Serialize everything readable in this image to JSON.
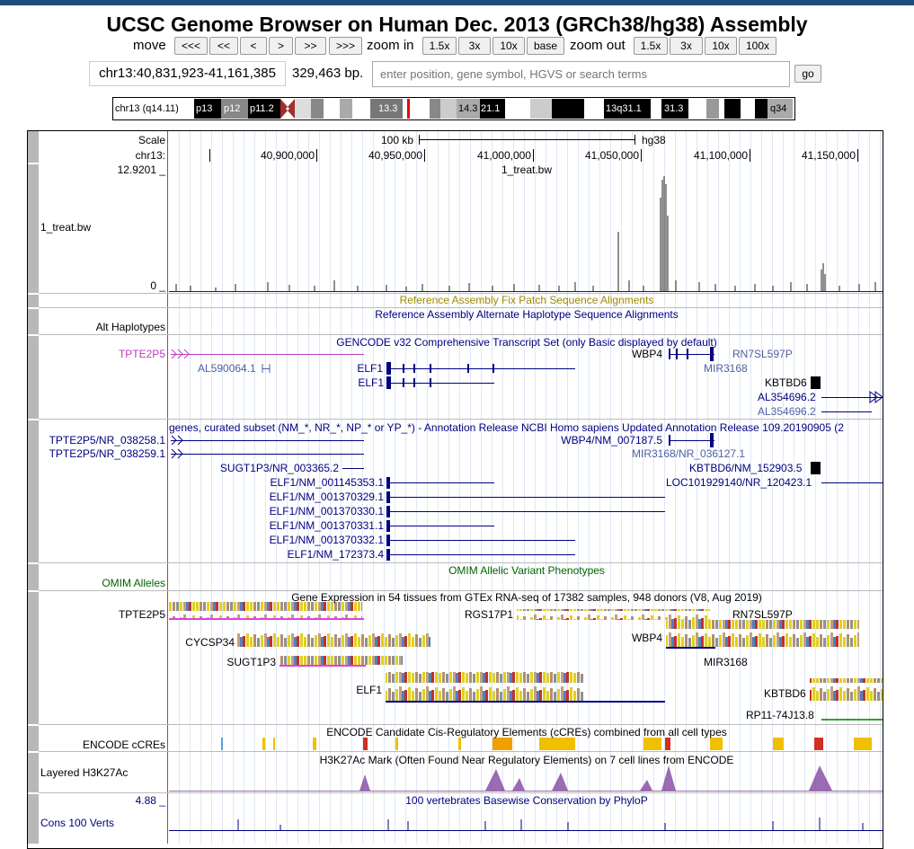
{
  "header": {
    "title": "UCSC Genome Browser on Human Dec. 2013 (GRCh38/hg38) Assembly"
  },
  "nav": {
    "move": "move",
    "move_buttons": [
      "<<<",
      "<<",
      "<",
      ">",
      ">>",
      ">>>"
    ],
    "zoom_in": "zoom in",
    "zoom_in_buttons": [
      "1.5x",
      "3x",
      "10x",
      "base"
    ],
    "zoom_out": "zoom out",
    "zoom_out_buttons": [
      "1.5x",
      "3x",
      "10x",
      "100x"
    ]
  },
  "position": {
    "range": "chr13:40,831,923-41,161,385",
    "size": "329,463 bp.",
    "search_placeholder": "enter position, gene symbol, HGVS or search terms",
    "go": "go"
  },
  "ideogram": {
    "label": "chr13 (q14.11)",
    "bands": [
      "p13",
      "p12",
      "p11.2",
      "13.3",
      "14.3",
      "21.1",
      "13q31.1",
      "31.3",
      "q34"
    ]
  },
  "ruler": {
    "scale": "Scale",
    "chrom": "chr13:",
    "scale_bar": "100 kb",
    "assembly": "hg38",
    "ticks": [
      "40,900,000",
      "40,950,000",
      "41,000,000",
      "41,050,000",
      "41,100,000",
      "41,150,000"
    ]
  },
  "tracks": [
    {
      "name": "1_treat.bw",
      "title": "1_treat.bw",
      "max": "12.9201 _",
      "min": "0 _"
    },
    {
      "title": "Reference Assembly Fix Patch Sequence Alignments"
    },
    {
      "name": "Alt Haplotypes",
      "title": "Reference Assembly Alternate Haplotype Sequence Alignments"
    },
    {
      "title": "GENCODE v32 Comprehensive Transcript Set (only Basic displayed by default)",
      "labels": [
        "TPTE2P5",
        "WBP4",
        "RN7SL597P",
        "AL590064.1",
        "ELF1",
        "MIR3168",
        "ELF1",
        "KBTBD6",
        "AL354696.2",
        "AL354696.2"
      ]
    },
    {
      "title": "genes, curated subset (NM_*, NR_*, NP_* or YP_*) - Annotation Release NCBI Homo sapiens Updated Annotation Release 109.20190905 (2",
      "labels": [
        "TPTE2P5/NR_038258.1",
        "WBP4/NM_007187.5",
        "TPTE2P5/NR_038259.1",
        "MIR3168/NR_036127.1",
        "SUGT1P3/NR_003365.2",
        "KBTBD6/NM_152903.5",
        "ELF1/NM_001145353.1",
        "LOC101929140/NR_120423.1",
        "ELF1/NM_001370329.1",
        "ELF1/NM_001370330.1",
        "ELF1/NM_001370331.1",
        "ELF1/NM_001370332.1",
        "ELF1/NM_172373.4"
      ]
    },
    {
      "name": "OMIM Alleles",
      "title": "OMIM Allelic Variant Phenotypes"
    },
    {
      "title": "Gene Expression in 54 tissues from GTEx RNA-seq of 17382 samples, 948 donors (V8, Aug 2019)",
      "labels": [
        "TPTE2P5",
        "RGS17P1",
        "RN7SL597P",
        "WBP4",
        "CYCSP34",
        "SUGT1P3",
        "MIR3168",
        "ELF1",
        "KBTBD6",
        "RP11-74J13.8"
      ]
    },
    {
      "name": "ENCODE cCREs",
      "title": "ENCODE Candidate Cis-Regulatory Elements (cCREs) combined from all cell types"
    },
    {
      "name": "Layered H3K27Ac",
      "title": "H3K27Ac Mark (Often Found Near Regulatory Elements) on 7 cell lines from ENCODE"
    },
    {
      "name": "Cons 100 Verts",
      "title": "100 vertebrates Basewise Conservation by PhyloP",
      "max": "4.88 _"
    }
  ]
}
